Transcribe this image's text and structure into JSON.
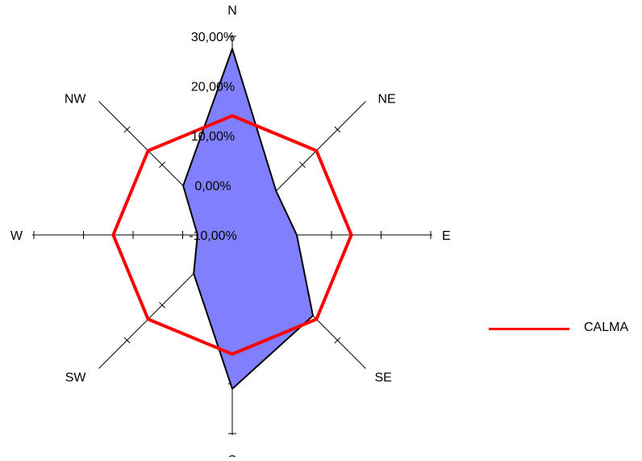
{
  "chart_data": {
    "type": "radar",
    "directions": [
      "N",
      "NE",
      "E",
      "SE",
      "S",
      "SW",
      "W",
      "NW"
    ],
    "radial_tick_labels": [
      "-10,00%",
      "0,00%",
      "10,00%",
      "20,00%",
      "30,00%"
    ],
    "radial_range": [
      -10,
      30
    ],
    "series": [
      {
        "name": "",
        "style": "filled-area",
        "values": [
          27.5,
          2.5,
          3.0,
          13.0,
          21.0,
          1.0,
          -3.0,
          4.0
        ]
      },
      {
        "name": "CALMA",
        "style": "line",
        "values": [
          14.0,
          14.0,
          14.0,
          14.0,
          14.0,
          14.0,
          14.0,
          14.0
        ]
      }
    ],
    "colors": {
      "area_fill": "#8080ff",
      "area_stroke": "#000000",
      "calma_line": "#ff0000",
      "axes": "#000000"
    },
    "legend": {
      "position": "right",
      "entries": [
        "CALMA"
      ]
    },
    "grid": false
  }
}
